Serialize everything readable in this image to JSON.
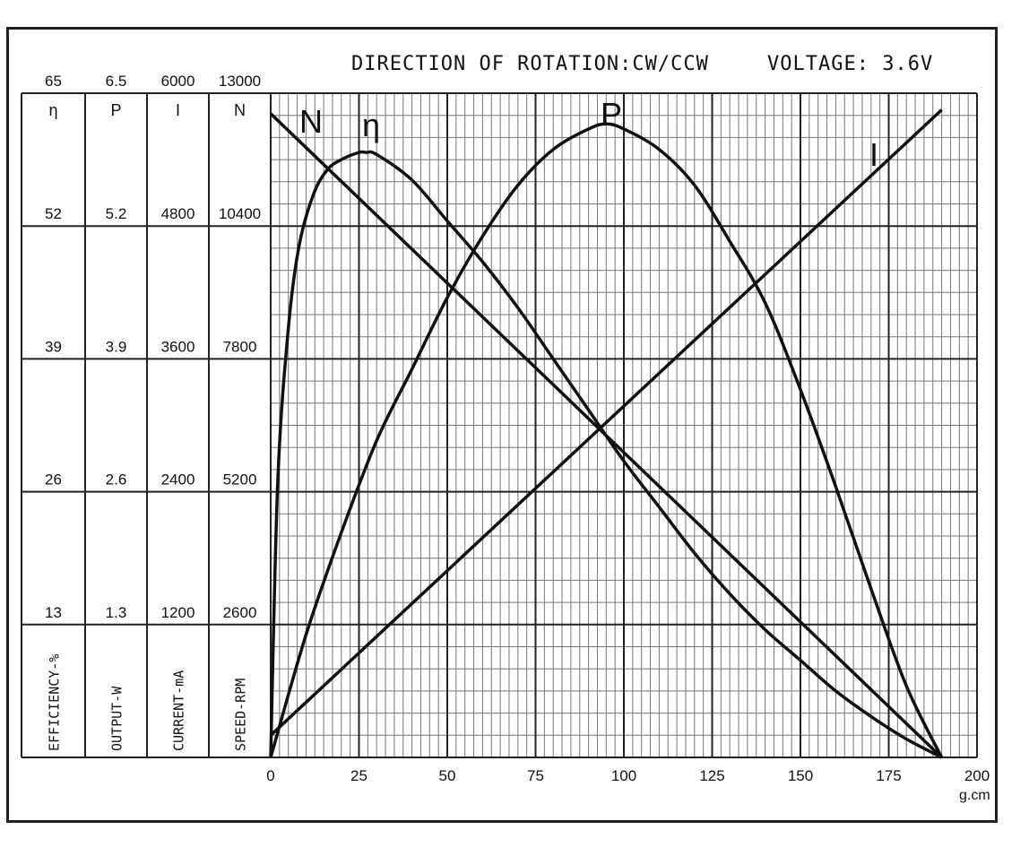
{
  "header": {
    "rotation": "DIRECTION OF ROTATION:CW/CCW",
    "voltage": "VOLTAGE: 3.6V"
  },
  "chart_data": {
    "type": "line",
    "xlabel": "g.cm",
    "x_ticks": [
      "0",
      "25",
      "50",
      "75",
      "100",
      "125",
      "150",
      "175",
      "200"
    ],
    "xlim": [
      0,
      200
    ],
    "grid": true,
    "axes": [
      {
        "symbol": "η",
        "label": "EFFICIENCY-%",
        "ticks": [
          "65",
          "52",
          "39",
          "26",
          "13"
        ],
        "range": [
          0,
          65
        ]
      },
      {
        "symbol": "P",
        "label": "OUTPUT-W",
        "ticks": [
          "6.5",
          "5.2",
          "3.9",
          "2.6",
          "1.3"
        ],
        "range": [
          0,
          6.5
        ]
      },
      {
        "symbol": "I",
        "label": "CURRENT-mA",
        "ticks": [
          "6000",
          "4800",
          "3600",
          "2400",
          "1200"
        ],
        "range": [
          0,
          6000
        ]
      },
      {
        "symbol": "N",
        "label": "SPEED-RPM",
        "ticks": [
          "13000",
          "10400",
          "7800",
          "5200",
          "2600"
        ],
        "range": [
          0,
          13000
        ]
      }
    ],
    "series": [
      {
        "name": "N",
        "x": [
          0,
          190
        ],
        "y": [
          12600,
          0
        ],
        "axis": 3
      },
      {
        "name": "I",
        "x": [
          0,
          190
        ],
        "y": [
          200,
          5850
        ],
        "axis": 2
      },
      {
        "name": "P",
        "x": [
          0,
          10,
          20,
          30,
          40,
          50,
          60,
          70,
          80,
          90,
          95,
          100,
          110,
          120,
          130,
          140,
          150,
          160,
          170,
          180,
          190
        ],
        "y": [
          0,
          1.2,
          2.2,
          3.1,
          3.8,
          4.5,
          5.1,
          5.6,
          5.95,
          6.15,
          6.2,
          6.15,
          5.95,
          5.6,
          5.05,
          4.45,
          3.6,
          2.65,
          1.65,
          0.7,
          0
        ],
        "axis": 1
      },
      {
        "name": "η",
        "x": [
          0,
          2,
          5,
          8,
          12,
          16,
          20,
          25,
          27,
          30,
          40,
          50,
          60,
          70,
          80,
          90,
          100,
          110,
          120,
          130,
          140,
          150,
          160,
          170,
          180,
          190
        ],
        "y": [
          0,
          27,
          42,
          50,
          55,
          57.5,
          58.5,
          59.2,
          59.2,
          59,
          56.5,
          52.5,
          48.5,
          44,
          39,
          34,
          29,
          24.5,
          20,
          16,
          12.5,
          9.5,
          6.5,
          4,
          1.8,
          0
        ],
        "axis": 0
      }
    ]
  }
}
